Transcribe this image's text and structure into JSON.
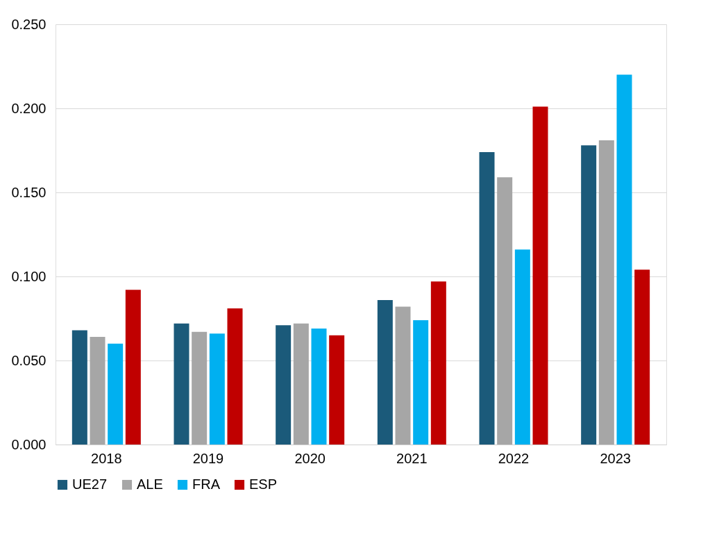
{
  "chart_data": {
    "type": "bar",
    "categories": [
      "2018",
      "2019",
      "2020",
      "2021",
      "2022",
      "2023"
    ],
    "series": [
      {
        "name": "UE27",
        "color": "#1b5a7a",
        "values": [
          0.068,
          0.072,
          0.071,
          0.086,
          0.174,
          0.178
        ]
      },
      {
        "name": "ALE",
        "color": "#a6a6a6",
        "values": [
          0.064,
          0.067,
          0.072,
          0.082,
          0.159,
          0.181
        ]
      },
      {
        "name": "FRA",
        "color": "#00b0f0",
        "values": [
          0.06,
          0.066,
          0.069,
          0.074,
          0.116,
          0.22
        ]
      },
      {
        "name": "ESP",
        "color": "#c00000",
        "values": [
          0.092,
          0.081,
          0.065,
          0.097,
          0.201,
          0.104
        ]
      }
    ],
    "ylim": [
      0,
      0.25
    ],
    "yticks": [
      {
        "value": 0,
        "label": "0.000"
      },
      {
        "value": 0.05,
        "label": "0.050"
      },
      {
        "value": 0.1,
        "label": "0.100"
      },
      {
        "value": 0.15,
        "label": "0.150"
      },
      {
        "value": 0.2,
        "label": "0.200"
      },
      {
        "value": 0.25,
        "label": "0.250"
      }
    ],
    "grid": "y",
    "legend": "bottom"
  }
}
